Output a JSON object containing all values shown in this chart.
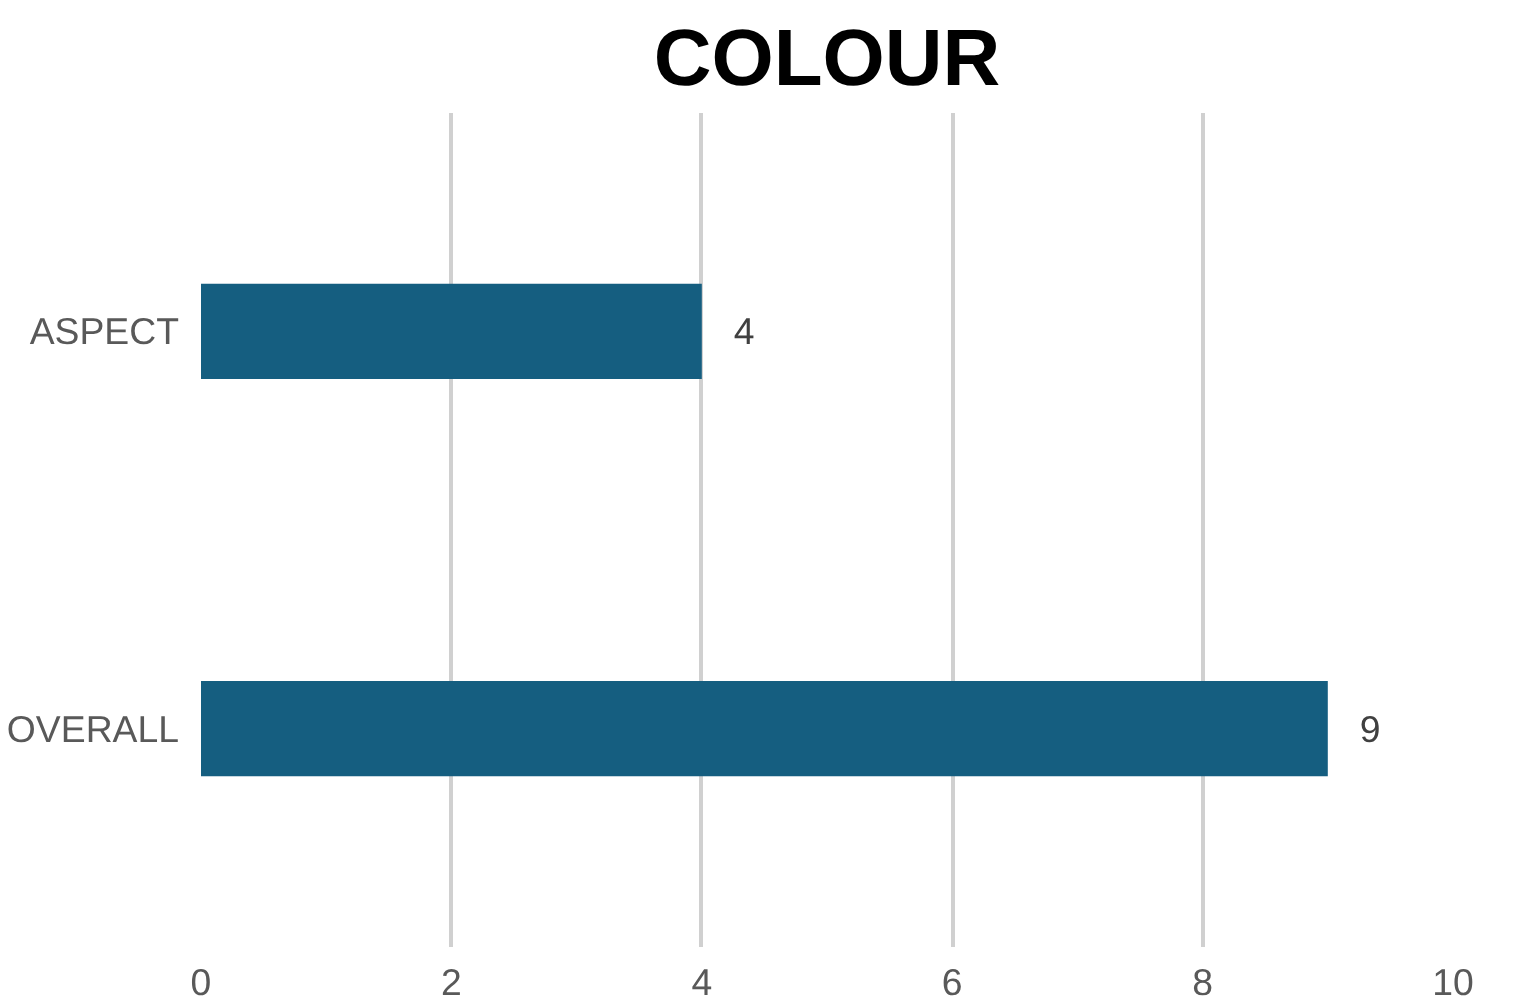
{
  "chart_data": {
    "type": "bar",
    "orientation": "horizontal",
    "title": "COLOUR",
    "categories": [
      "ASPECT",
      "OVERALL"
    ],
    "values": [
      4,
      9
    ],
    "color": "#155e80",
    "xlim": [
      0,
      10
    ],
    "xticks": [
      0,
      2,
      4,
      6,
      8,
      10
    ],
    "grid": "x",
    "data_labels": true
  }
}
